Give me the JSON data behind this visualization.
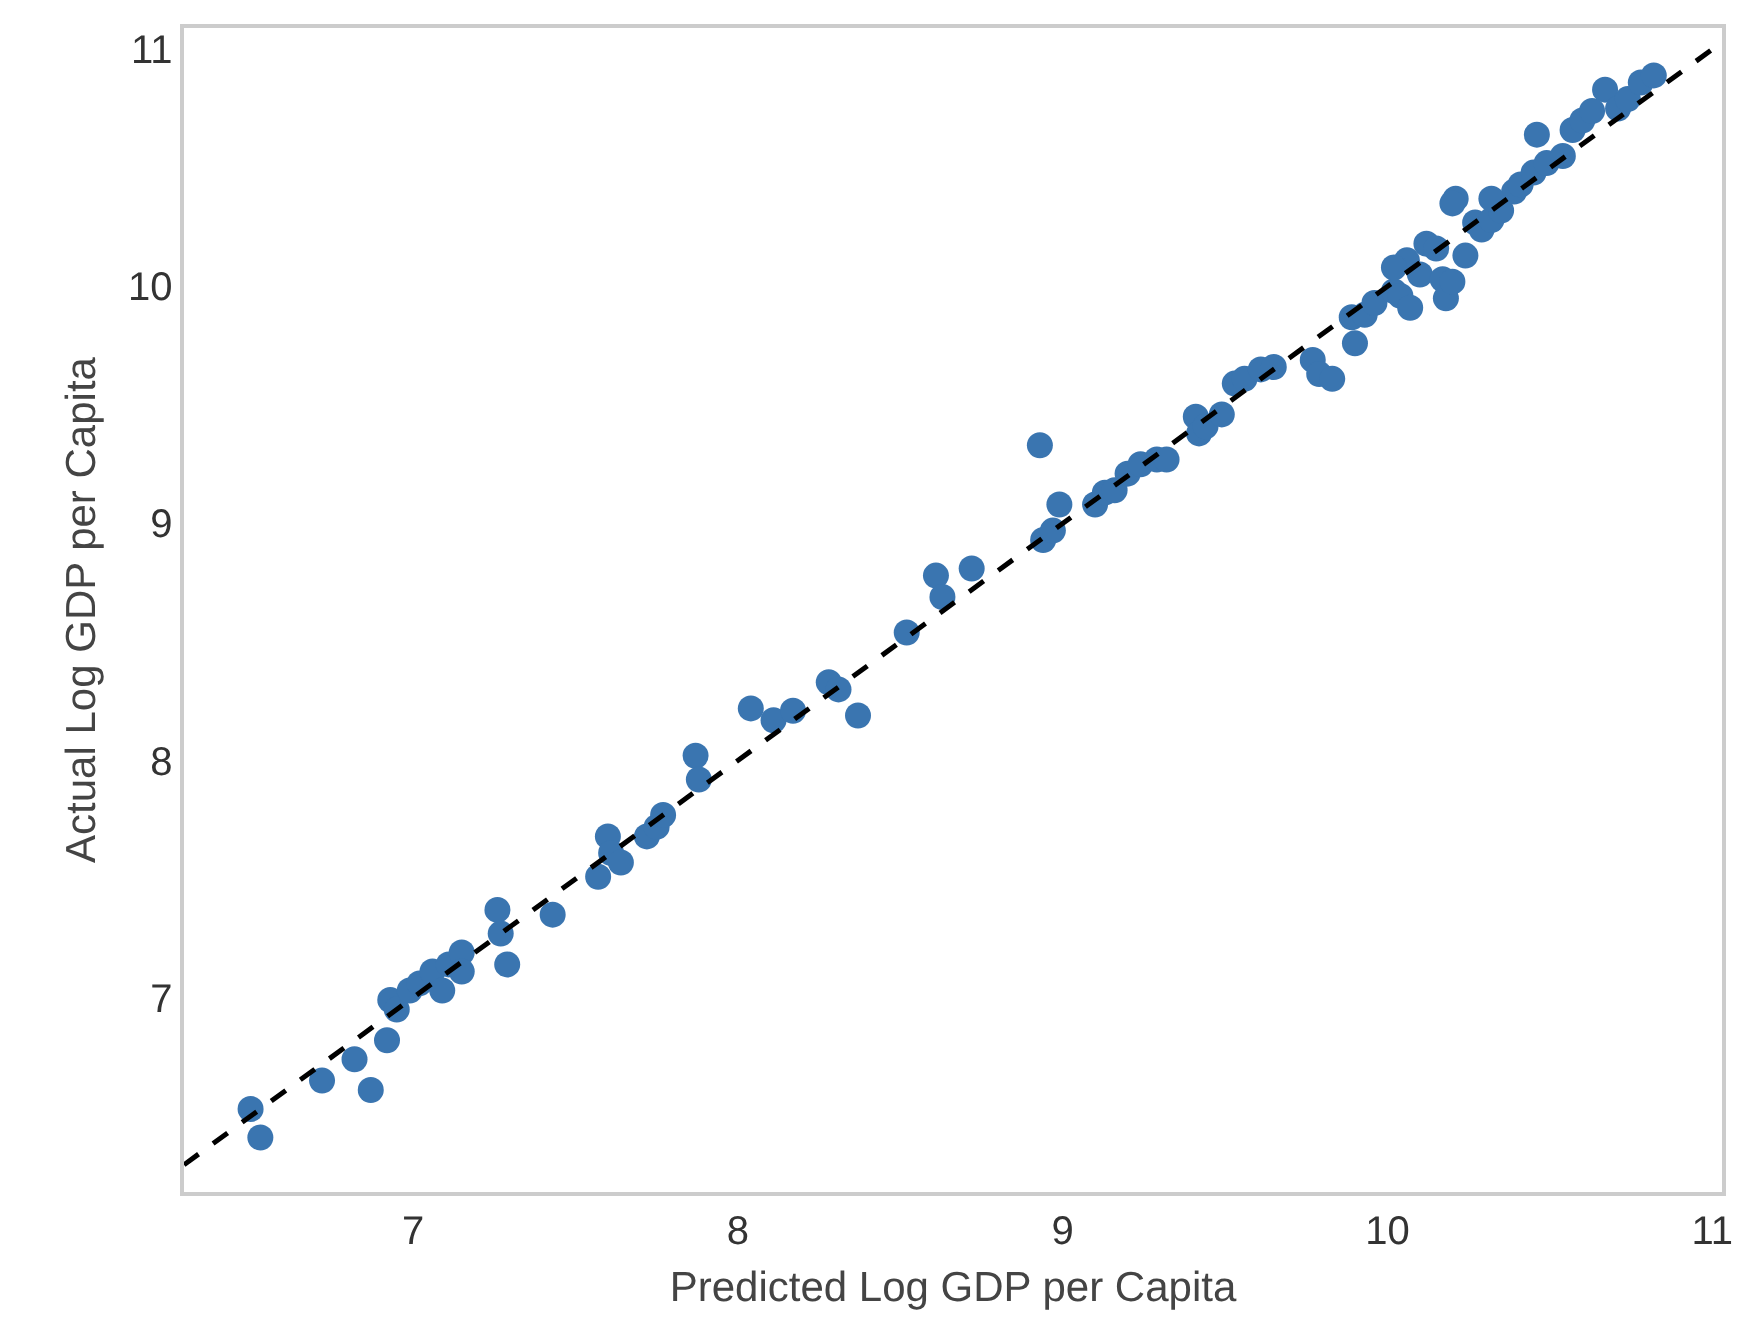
{
  "chart_data": {
    "type": "scatter",
    "xlabel": "Predicted Log GDP per Capita",
    "ylabel": "Actual Log GDP per Capita",
    "xlim": [
      6.295,
      11.03
    ],
    "ylim": [
      6.18,
      11.09
    ],
    "xticks": [
      7,
      8,
      9,
      10,
      11
    ],
    "yticks": [
      7,
      8,
      9,
      10,
      11
    ],
    "grid": false,
    "legend": false,
    "marker": "circle",
    "series": [
      {
        "color": "#3a75b0",
        "x": [
          6.5,
          6.53,
          6.72,
          6.82,
          6.87,
          6.92,
          6.93,
          6.95,
          6.99,
          7.02,
          7.06,
          7.09,
          7.11,
          7.15,
          7.15,
          7.26,
          7.27,
          7.29,
          7.43,
          7.57,
          7.6,
          7.61,
          7.64,
          7.72,
          7.75,
          7.77,
          7.87,
          7.88,
          8.04,
          8.11,
          8.17,
          8.28,
          8.31,
          8.37,
          8.52,
          8.61,
          8.63,
          8.72,
          8.93,
          8.94,
          8.97,
          8.99,
          9.1,
          9.13,
          9.16,
          9.2,
          9.24,
          9.29,
          9.32,
          9.41,
          9.42,
          9.44,
          9.49,
          9.53,
          9.56,
          9.61,
          9.65,
          9.77,
          9.79,
          9.83,
          9.89,
          9.9,
          9.93,
          9.96,
          10.02,
          10.04,
          10.06,
          10.07,
          10.1,
          10.12,
          10.15,
          10.17,
          10.18,
          10.2,
          10.21,
          10.24,
          10.27,
          10.29,
          10.32,
          10.35,
          10.39,
          10.41,
          10.45,
          10.46,
          10.49,
          10.54,
          10.57,
          10.6,
          10.63,
          10.67,
          10.71,
          10.74,
          10.78,
          10.82,
          10.32,
          10.2,
          10.02
        ],
        "values": [
          6.53,
          6.41,
          6.65,
          6.74,
          6.61,
          6.82,
          6.99,
          6.95,
          7.03,
          7.06,
          7.11,
          7.03,
          7.14,
          7.19,
          7.11,
          7.37,
          7.27,
          7.14,
          7.35,
          7.51,
          7.68,
          7.61,
          7.57,
          7.68,
          7.72,
          7.77,
          8.02,
          7.92,
          8.22,
          8.17,
          8.21,
          8.33,
          8.3,
          8.19,
          8.54,
          8.78,
          8.69,
          8.81,
          9.33,
          8.93,
          8.97,
          9.08,
          9.08,
          9.13,
          9.14,
          9.21,
          9.25,
          9.27,
          9.27,
          9.45,
          9.38,
          9.41,
          9.46,
          9.59,
          9.61,
          9.65,
          9.66,
          9.69,
          9.63,
          9.61,
          9.87,
          9.76,
          9.88,
          9.93,
          9.98,
          9.96,
          10.11,
          9.91,
          10.05,
          10.18,
          10.16,
          10.03,
          9.95,
          10.02,
          10.37,
          10.13,
          10.27,
          10.24,
          10.28,
          10.32,
          10.4,
          10.43,
          10.48,
          10.64,
          10.52,
          10.55,
          10.66,
          10.7,
          10.74,
          10.83,
          10.75,
          10.79,
          10.86,
          10.89,
          10.37,
          10.35,
          10.08
        ]
      },
      {
        "type": "line",
        "color": "#000000",
        "line_style": "dashed",
        "marker": "none",
        "x": [
          6.295,
          11.03
        ],
        "values": [
          6.295,
          11.03
        ]
      }
    ]
  }
}
